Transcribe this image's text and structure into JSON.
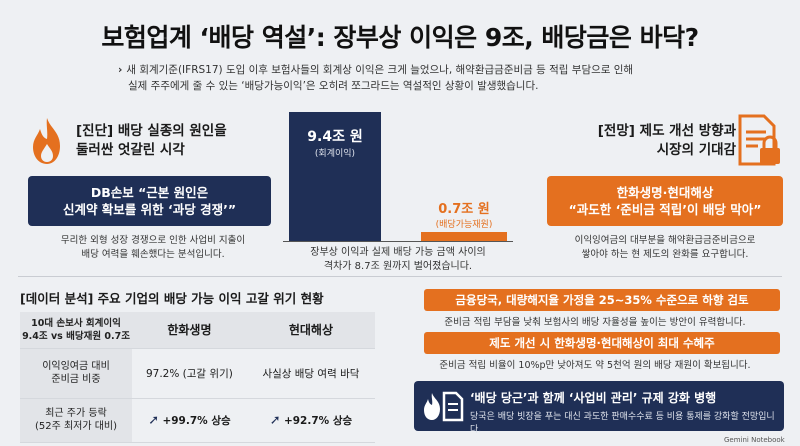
{
  "header": {
    "title": "보험업계 ‘배당 역설’: 장부상 이익은 9조, 배당금은 바닥?",
    "subtitle_line1": "새 회계기준(IFRS17) 도입 이후 보험사들의 회계상 이익은 크게 늘었으나, 해약환급금준비금 등 적립 부담으로 인해",
    "subtitle_line2": "실제 주주에게 줄 수 있는 ‘배당가능이익’은 오히려 쪼그라드는 역설적인 상황이 발생했습니다.",
    "arrow": "›"
  },
  "diagnosis": {
    "heading_line1": "[진단] 배당 실종의 원인을",
    "heading_line2": "둘러싼 엇갈린 시각",
    "box_line1": "DB손보 “근본 원인은",
    "box_line2": "신계약 확보를 위한 ‘과당 경쟁’”",
    "note_line1": "무리한 외형 성장 경쟁으로 인한 사업비 지출이",
    "note_line2": "배당 여력을 훼손했다는 분석입니다."
  },
  "chart_data": {
    "type": "bar",
    "categories": [
      "회계이익",
      "배당가능재원"
    ],
    "values": [
      9.4,
      0.7
    ],
    "value_labels": [
      "9.4조 원",
      "0.7조 원"
    ],
    "sub_labels": [
      "(회계이익)",
      "(배당가능재원)"
    ],
    "caption_line1": "장부상 이익과 실제 배당 가능 금액 사이의",
    "caption_line2": "격차가 8.7조 원까지 벌어졌습니다.",
    "colors": [
      "#1f2f56",
      "#e4701f"
    ]
  },
  "outlook": {
    "heading_line1": "[전망] 제도 개선 방향과",
    "heading_line2": "시장의 기대감",
    "box_line1": "한화생명·현대해상",
    "box_line2": "“과도한 ‘준비금 적립’이 배당 막아”",
    "note_line1": "이익잉여금의 대부분을 해약환급금준비금으로",
    "note_line2": "쌓아야 하는 현 제도의 완화를 요구합니다."
  },
  "data_analysis": {
    "heading": "[데이터 분석] 주요 기업의 배당 가능 이익 고갈 위기 현황",
    "corner_line1": "10대 손보사 회계이익",
    "corner_line2": "9.4조 vs 배당재원 0.7조",
    "col1": "한화생명",
    "col2": "현대해상",
    "rows": [
      {
        "label_line1": "이익잉여금 대비",
        "label_line2": "준비금 비중",
        "c1": "97.2% (고갈 위기)",
        "c2": "사실상 배당 여력 바닥"
      },
      {
        "label_line1": "최근 주가 등락",
        "label_line2": "(52주 최저가 대비)",
        "c1": "+99.7% 상승",
        "c2": "+92.7% 상승"
      }
    ]
  },
  "measures": [
    {
      "title": "금융당국, 대량해지율 가정을 25~35% 수준으로 하향 검토",
      "note": "준비금 적립 부담을 낮춰 보험사의 배당 자율성을 높이는 방안이 유력합니다."
    },
    {
      "title": "제도 개선 시 한화생명·현대해상이 최대 수혜주",
      "note": "준비금 적립 비율이 10%p만 낮아져도 약 5천억 원의 배당 재원이 확보됩니다."
    }
  ],
  "bottom_box": {
    "title": "‘배당 당근’과 함께 ‘사업비 관리’ 규제 강화 병행",
    "note": "당국은 배당 빗장을 푸는 대신 과도한 판매수수료 등 비용 통제를 강화할 전망입니다."
  },
  "watermark": "Gemini Notebook",
  "colors": {
    "navy": "#1f2f56",
    "orange": "#e4701f"
  },
  "icons": [
    "fire-icon",
    "document-lock-icon",
    "up-arrow-icon",
    "flame-document-icon"
  ]
}
